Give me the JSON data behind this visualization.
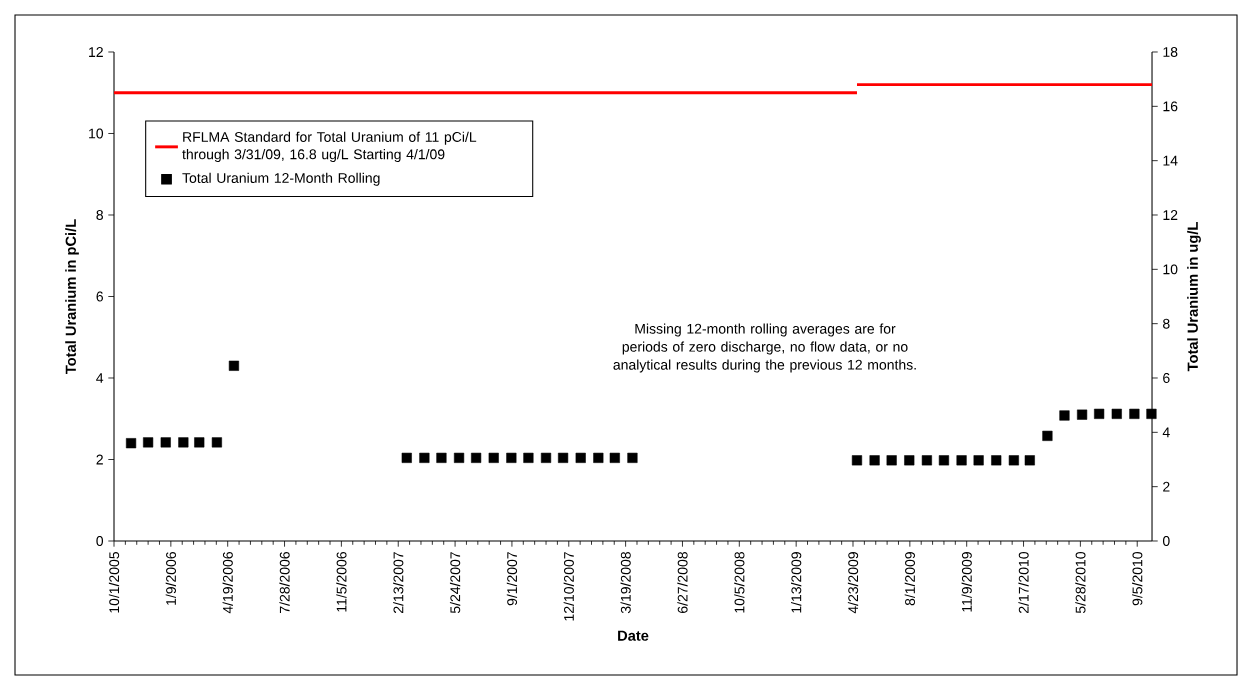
{
  "chart_data": {
    "type": "scatter",
    "xlabel": "Date",
    "ylabel": "Total Uranium in pCi/L",
    "y2label": "Total Uranium in ug/L",
    "annotations": [
      "Missing 12-month rolling averages are for periods of zero discharge, no flow data, or no analytical results during the previous 12 months."
    ],
    "xlim": [
      "2005-10-01",
      "2010-10-01"
    ],
    "xticks": [
      {
        "value": "2005-10-01",
        "label": "10/1/2005"
      },
      {
        "value": "2006-01-09",
        "label": "1/9/2006"
      },
      {
        "value": "2006-04-19",
        "label": "4/19/2006"
      },
      {
        "value": "2006-07-28",
        "label": "7/28/2006"
      },
      {
        "value": "2006-11-05",
        "label": "11/5/2006"
      },
      {
        "value": "2007-02-13",
        "label": "2/13/2007"
      },
      {
        "value": "2007-05-24",
        "label": "5/24/2007"
      },
      {
        "value": "2007-09-01",
        "label": "9/1/2007"
      },
      {
        "value": "2007-12-10",
        "label": "12/10/2007"
      },
      {
        "value": "2008-03-19",
        "label": "3/19/2008"
      },
      {
        "value": "2008-06-27",
        "label": "6/27/2008"
      },
      {
        "value": "2008-10-05",
        "label": "10/5/2008"
      },
      {
        "value": "2009-01-13",
        "label": "1/13/2009"
      },
      {
        "value": "2009-04-23",
        "label": "4/23/2009"
      },
      {
        "value": "2009-08-01",
        "label": "8/1/2009"
      },
      {
        "value": "2009-11-09",
        "label": "11/9/2009"
      },
      {
        "value": "2010-02-17",
        "label": "2/17/2010"
      },
      {
        "value": "2010-05-28",
        "label": "5/28/2010"
      },
      {
        "value": "2010-09-05",
        "label": "9/5/2010"
      }
    ],
    "ylim": [
      0,
      12
    ],
    "yticks": [
      0,
      2,
      4,
      6,
      8,
      10,
      12
    ],
    "y2lim": [
      0,
      18
    ],
    "y2ticks": [
      0,
      2,
      4,
      6,
      8,
      10,
      12,
      14,
      16,
      18
    ],
    "legend": "top left",
    "grid": false,
    "series": [
      {
        "name": "RFLMA Standard for Total Uranium of 11 pCi/L through 3/31/09, 16.8 ug/L Starting 4/1/09",
        "type": "line",
        "line_style": "solid",
        "color": "#ff0000",
        "x": [
          "2005-10-01",
          "2009-04-30"
        ],
        "values": [
          11,
          11
        ]
      },
      {
        "name": "Total Uranium 12-Month Rolling",
        "marker": "square",
        "color": "#000000",
        "x": [
          "2005-10-31",
          "2005-11-30",
          "2005-12-31",
          "2006-01-31",
          "2006-02-28",
          "2006-03-31",
          "2006-04-30",
          "2007-02-28",
          "2007-03-31",
          "2007-04-30",
          "2007-05-31",
          "2007-06-30",
          "2007-07-31",
          "2007-08-31",
          "2007-09-30",
          "2007-10-31",
          "2007-11-30",
          "2007-12-31",
          "2008-01-31",
          "2008-02-29",
          "2008-03-31",
          "2009-04-30",
          "2009-05-31",
          "2009-06-30",
          "2009-07-31",
          "2009-08-31",
          "2009-09-30",
          "2009-10-31",
          "2009-11-30",
          "2009-12-31",
          "2010-01-31",
          "2010-02-28",
          "2010-03-31",
          "2010-04-30",
          "2010-05-31",
          "2010-06-30",
          "2010-07-31",
          "2010-08-31",
          "2010-09-30"
        ],
        "values": [
          2.4,
          2.42,
          2.42,
          2.42,
          2.42,
          2.42,
          4.3,
          2.04,
          2.04,
          2.04,
          2.04,
          2.04,
          2.04,
          2.04,
          2.04,
          2.04,
          2.04,
          2.04,
          2.04,
          2.04,
          2.04,
          1.98,
          1.98,
          1.98,
          1.98,
          1.98,
          1.98,
          1.98,
          1.98,
          1.98,
          1.98,
          1.98,
          2.58,
          3.08,
          3.1,
          3.12,
          3.12,
          3.12,
          3.12
        ]
      },
      {
        "type": "line",
        "axis": "y2",
        "line_style": "solid",
        "color": "#ff0000",
        "x": [
          "2009-04-30",
          "2010-10-01"
        ],
        "values": [
          16.8,
          16.8
        ]
      }
    ]
  }
}
